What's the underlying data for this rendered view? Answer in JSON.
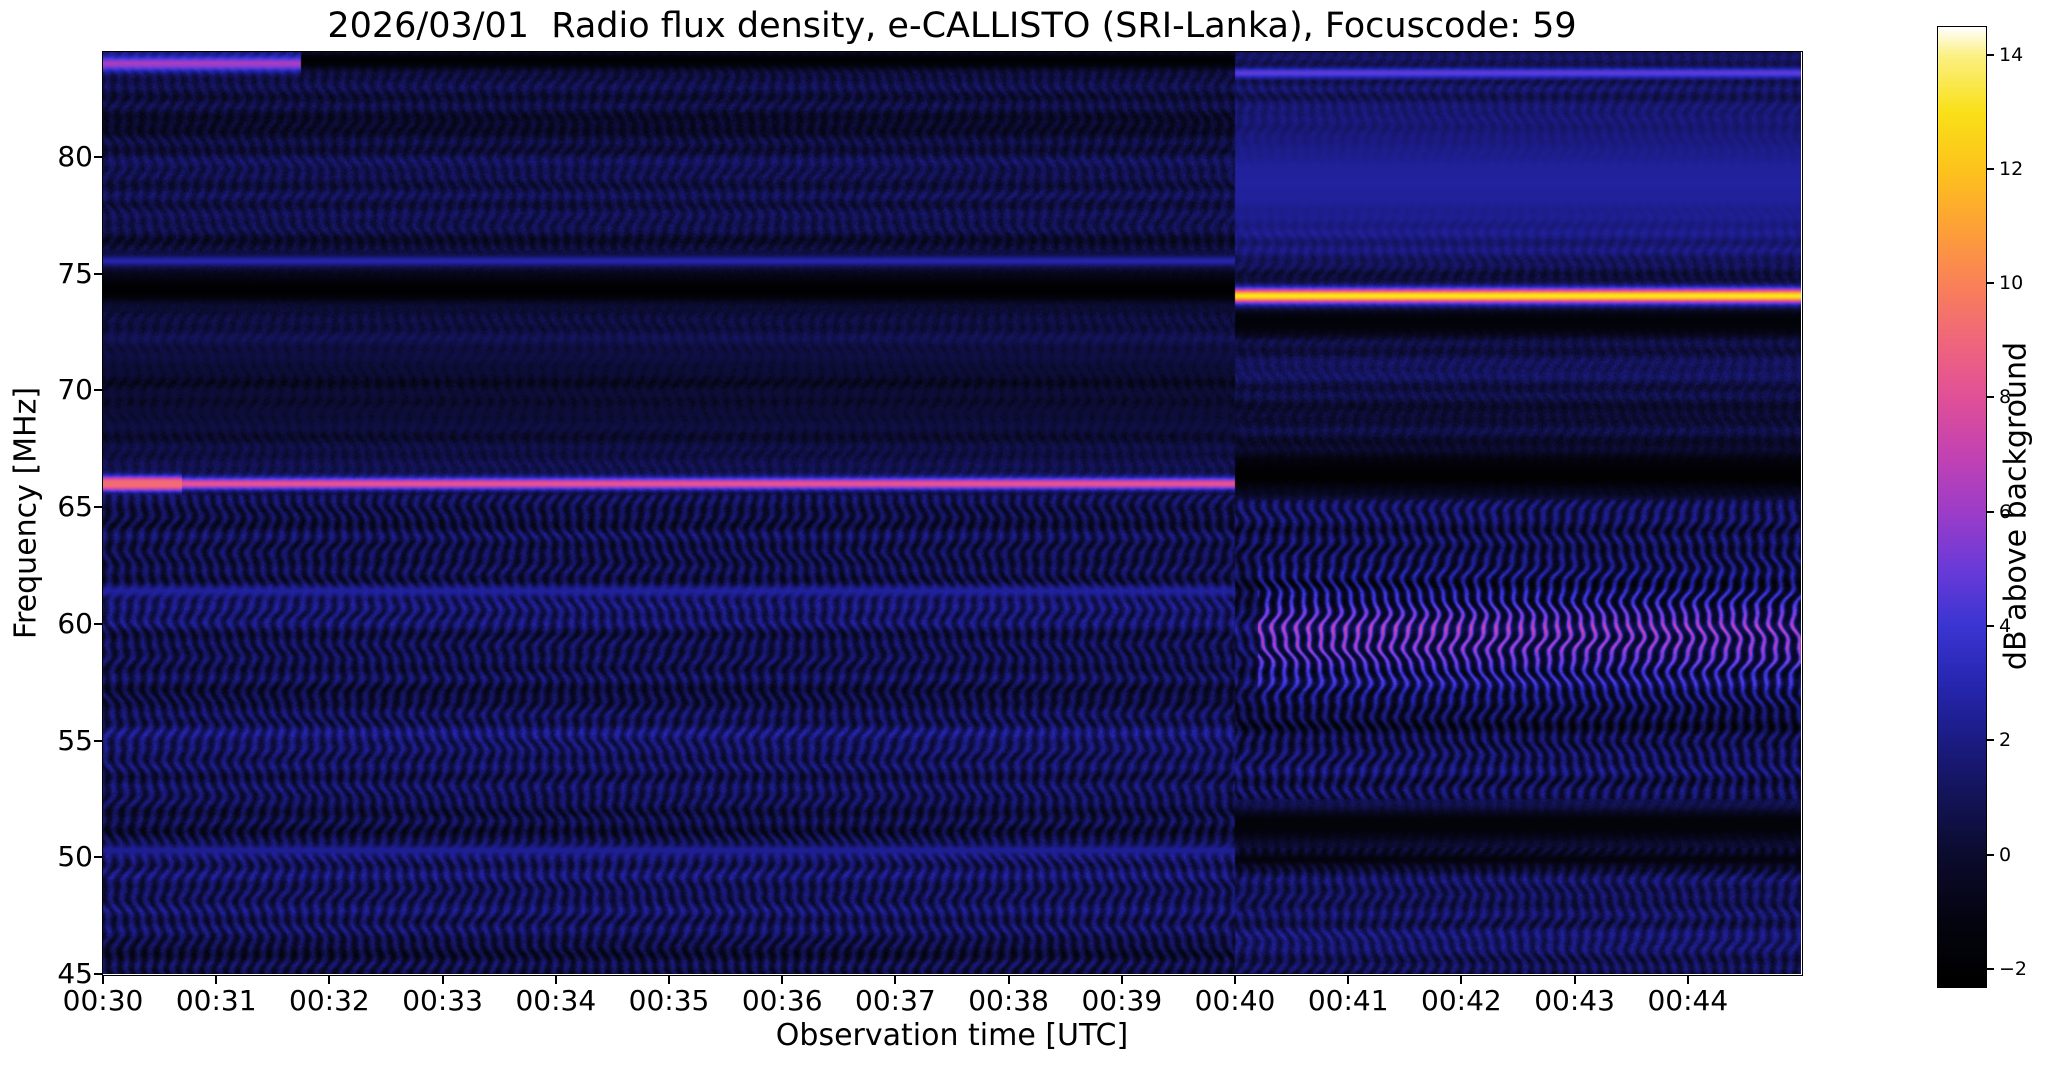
{
  "chart_data": {
    "type": "heatmap",
    "subtype": "radio-spectrogram",
    "title": "2026/03/01  Radio flux density, e-CALLISTO (SRI-Lanka), Focuscode: 59",
    "xlabel": "Observation time [UTC]",
    "ylabel": "Frequency [MHz]",
    "x_range_min": [
      0,
      15
    ],
    "x_start_time_utc": "00:30",
    "x_ticks": [
      "00:30",
      "00:31",
      "00:32",
      "00:33",
      "00:34",
      "00:35",
      "00:36",
      "00:37",
      "00:38",
      "00:39",
      "00:40",
      "00:41",
      "00:42",
      "00:43",
      "00:44"
    ],
    "x_tick_minutes": [
      0,
      1,
      2,
      3,
      4,
      5,
      6,
      7,
      8,
      9,
      10,
      11,
      12,
      13,
      14
    ],
    "y_ticks": [
      80,
      75,
      70,
      65,
      60,
      55,
      50,
      45
    ],
    "y_tick_labels": [
      "80",
      "75",
      "70",
      "65",
      "60",
      "55",
      "50",
      "45"
    ],
    "y_range_mhz": [
      45,
      84.5
    ],
    "grid": false,
    "colorbar": {
      "label": "dB above background",
      "tick_values": [
        14,
        12,
        10,
        8,
        6,
        4,
        2,
        0,
        -2
      ],
      "tick_labels": [
        "14",
        "12",
        "10",
        "8",
        "6",
        "4",
        "2",
        "0",
        "−2"
      ],
      "vmin": -2.3,
      "vmax": 14.5
    },
    "colormap_stops": [
      [
        -2.3,
        "#000000"
      ],
      [
        -1.2,
        "#04040f"
      ],
      [
        0,
        "#0b0b2e"
      ],
      [
        1,
        "#131357"
      ],
      [
        2,
        "#1b1b83"
      ],
      [
        3,
        "#2626b0"
      ],
      [
        4,
        "#3a35d2"
      ],
      [
        5,
        "#6a3ad8"
      ],
      [
        6,
        "#9c3cc8"
      ],
      [
        7,
        "#c342b2"
      ],
      [
        8,
        "#e05098"
      ],
      [
        9,
        "#ef667c"
      ],
      [
        10,
        "#f98158"
      ],
      [
        11,
        "#fda136"
      ],
      [
        12,
        "#fdc31c"
      ],
      [
        13,
        "#f9e018"
      ],
      [
        14,
        "#fbf083"
      ],
      [
        14.5,
        "#ffffff"
      ]
    ],
    "segment_boundary_min": 10,
    "background_level_db": 0.6,
    "features": [
      {
        "kind": "dark-band",
        "label": "blanked band ~74.3 MHz (left segment)",
        "f_mhz": 74.35,
        "width_mhz": 0.85,
        "t_start_min": 0,
        "t_end_min": 10,
        "db": -2.1
      },
      {
        "kind": "dark-band",
        "label": "top rows dark after 00:32 (left segment)",
        "f_mhz": 84.15,
        "width_mhz": 0.5,
        "t_start_min": 1.75,
        "t_end_min": 10,
        "db": -1.9
      },
      {
        "kind": "dark-band",
        "label": "dim zone 68-72 MHz (left segment)",
        "f_mhz": 70.0,
        "width_mhz": 3.2,
        "t_start_min": 0,
        "t_end_min": 10,
        "db": 0.25
      },
      {
        "kind": "dark-band",
        "label": "blanked band ~66.4 MHz (right segment)",
        "f_mhz": 66.4,
        "width_mhz": 1.15,
        "t_start_min": 10,
        "t_end_min": 15,
        "db": -2.1
      },
      {
        "kind": "dark-band",
        "label": "dark band ~73 MHz (right segment)",
        "f_mhz": 72.95,
        "width_mhz": 0.75,
        "t_start_min": 10,
        "t_end_min": 15,
        "db": -1.8
      },
      {
        "kind": "dark-band",
        "label": "dark band ~51.4 MHz (right segment)",
        "f_mhz": 51.4,
        "width_mhz": 0.9,
        "t_start_min": 10,
        "t_end_min": 15,
        "db": -1.6
      },
      {
        "kind": "dark-band",
        "label": "dark line ~49.9 MHz (right segment)",
        "f_mhz": 49.9,
        "width_mhz": 0.35,
        "t_start_min": 10,
        "t_end_min": 15,
        "db": -1.3
      },
      {
        "kind": "wavy-enhancement",
        "label": "magenta scintillation waves 57-62 MHz (right segment)",
        "f_mhz": 59.5,
        "width_mhz": 3.0,
        "t_start_min": 10.2,
        "t_end_min": 15,
        "db": 6.5
      },
      {
        "kind": "bright-band",
        "label": "bright blue band 75-83 MHz (right segment)",
        "f_mhz": 78.9,
        "width_mhz": 4.3,
        "t_start_min": 10,
        "t_end_min": 15,
        "db": 2.6
      },
      {
        "kind": "bright-line",
        "label": "pink RFI carrier 66 MHz (left segment)",
        "f_mhz": 66.0,
        "width_mhz": 0.33,
        "t_start_min": 0,
        "t_end_min": 10,
        "db": 8.3
      },
      {
        "kind": "bright-line",
        "label": "66 MHz carrier brighter at start",
        "f_mhz": 66.0,
        "width_mhz": 0.4,
        "t_start_min": 0,
        "t_end_min": 0.7,
        "db": 9.3
      },
      {
        "kind": "bright-line",
        "label": "yellow RFI carrier 74 MHz (right segment)",
        "f_mhz": 74.05,
        "width_mhz": 0.42,
        "t_start_min": 10,
        "t_end_min": 15,
        "db": 13.2
      },
      {
        "kind": "bright-line",
        "label": "magenta strip ~84 MHz 00:30-00:32",
        "f_mhz": 84.0,
        "width_mhz": 0.45,
        "t_start_min": 0,
        "t_end_min": 1.75,
        "db": 6.3
      },
      {
        "kind": "bright-line",
        "label": "line 83.6 MHz (right segment)",
        "f_mhz": 83.6,
        "width_mhz": 0.3,
        "t_start_min": 10,
        "t_end_min": 15,
        "db": 4.8
      },
      {
        "kind": "bright-line",
        "label": "speckled line 75.5 MHz (left segment)",
        "f_mhz": 75.55,
        "width_mhz": 0.33,
        "t_start_min": 0,
        "t_end_min": 10,
        "db": 2.9
      },
      {
        "kind": "bright-line",
        "label": "faint line 61.4 MHz (left segment)",
        "f_mhz": 61.4,
        "width_mhz": 0.3,
        "t_start_min": 0,
        "t_end_min": 10,
        "db": 2.5
      },
      {
        "kind": "bright-line",
        "label": "faint line 50.3 MHz (left segment)",
        "f_mhz": 50.3,
        "width_mhz": 0.3,
        "t_start_min": 0,
        "t_end_min": 10,
        "db": 2.4
      }
    ]
  }
}
